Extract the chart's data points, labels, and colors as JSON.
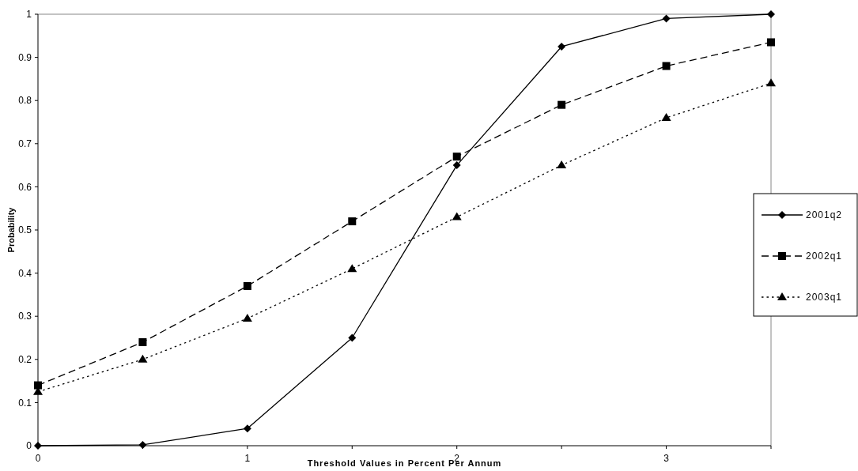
{
  "chart_data": {
    "type": "line",
    "xlabel": "Threshold Values in Percent Per Annum",
    "ylabel": "Probability",
    "x": [
      0,
      0.5,
      1,
      1.5,
      2,
      2.5,
      3,
      3.5
    ],
    "series": [
      {
        "name": "2001q2",
        "color": "#000000",
        "marker": "diamond",
        "line_style": "solid",
        "values": [
          0,
          0.002,
          0.04,
          0.25,
          0.65,
          0.925,
          0.99,
          1.0
        ]
      },
      {
        "name": "2002q1",
        "color": "#000000",
        "marker": "square",
        "line_style": "dashed",
        "values": [
          0.14,
          0.24,
          0.37,
          0.52,
          0.67,
          0.79,
          0.88,
          0.935
        ]
      },
      {
        "name": "2003q1",
        "color": "#000000",
        "marker": "triangle",
        "line_style": "dotted",
        "values": [
          0.125,
          0.2,
          0.295,
          0.41,
          0.53,
          0.65,
          0.76,
          0.84
        ]
      }
    ],
    "xlim": [
      0,
      3.5
    ],
    "xticks": [
      0,
      {
        "value": 0.5,
        "label": null
      },
      1,
      {
        "value": 1.5,
        "label": null
      },
      2,
      {
        "value": 2.5,
        "label": null
      },
      3,
      {
        "value": 3.5,
        "label": null
      }
    ],
    "ylim": [
      0,
      1
    ],
    "yticks": [
      0,
      0.1,
      0.2,
      0.3,
      0.4,
      0.5,
      0.6,
      0.7,
      0.8,
      0.9,
      1
    ],
    "legend": "right",
    "grid": false
  }
}
